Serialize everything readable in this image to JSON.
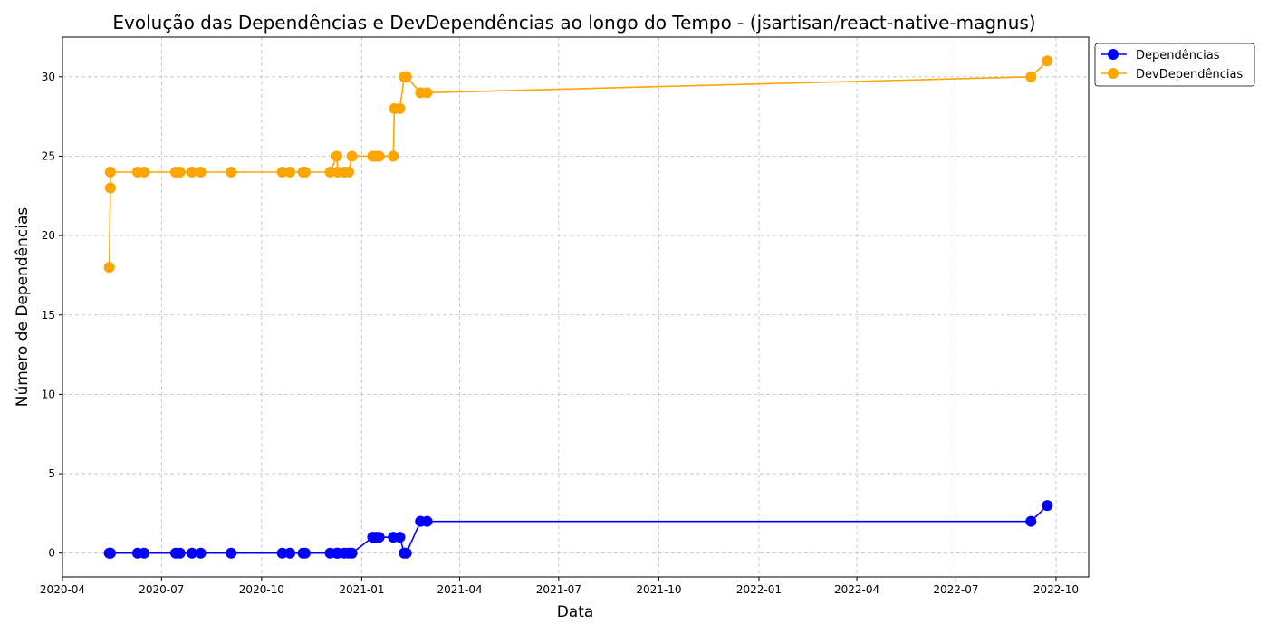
{
  "chart_data": {
    "type": "line",
    "title": "Evolução das Dependências e DevDependências ao longo do Tempo - (jsartisan/react-native-magnus)",
    "xlabel": "Data",
    "ylabel": "Número de Dependências",
    "xlim": [
      "2020-04-01",
      "2022-10-31"
    ],
    "ylim": [
      -1.5,
      32.5
    ],
    "x_ticks": [
      {
        "date": "2020-04-01",
        "label": "2020-04"
      },
      {
        "date": "2020-07-01",
        "label": "2020-07"
      },
      {
        "date": "2020-10-01",
        "label": "2020-10"
      },
      {
        "date": "2021-01-01",
        "label": "2021-01"
      },
      {
        "date": "2021-04-01",
        "label": "2021-04"
      },
      {
        "date": "2021-07-01",
        "label": "2021-07"
      },
      {
        "date": "2021-10-01",
        "label": "2021-10"
      },
      {
        "date": "2022-01-01",
        "label": "2022-01"
      },
      {
        "date": "2022-04-01",
        "label": "2022-04"
      },
      {
        "date": "2022-07-01",
        "label": "2022-07"
      },
      {
        "date": "2022-10-01",
        "label": "2022-10"
      }
    ],
    "y_ticks": [
      0,
      5,
      10,
      15,
      20,
      25,
      30
    ],
    "grid": true,
    "legend_position": "outside-top-right",
    "series": [
      {
        "name": "Dependências",
        "color": "#0000ff",
        "points": [
          {
            "x": "2020-05-14",
            "y": 0
          },
          {
            "x": "2020-05-15",
            "y": 0
          },
          {
            "x": "2020-05-15",
            "y": 0
          },
          {
            "x": "2020-06-09",
            "y": 0
          },
          {
            "x": "2020-06-15",
            "y": 0
          },
          {
            "x": "2020-07-14",
            "y": 0
          },
          {
            "x": "2020-07-18",
            "y": 0
          },
          {
            "x": "2020-07-29",
            "y": 0
          },
          {
            "x": "2020-08-06",
            "y": 0
          },
          {
            "x": "2020-09-03",
            "y": 0
          },
          {
            "x": "2020-10-20",
            "y": 0
          },
          {
            "x": "2020-10-27",
            "y": 0
          },
          {
            "x": "2020-11-08",
            "y": 0
          },
          {
            "x": "2020-11-10",
            "y": 0
          },
          {
            "x": "2020-12-03",
            "y": 0
          },
          {
            "x": "2020-12-09",
            "y": 0
          },
          {
            "x": "2020-12-10",
            "y": 0
          },
          {
            "x": "2020-12-16",
            "y": 0
          },
          {
            "x": "2020-12-20",
            "y": 0
          },
          {
            "x": "2020-12-23",
            "y": 0
          },
          {
            "x": "2021-01-11",
            "y": 1
          },
          {
            "x": "2021-01-14",
            "y": 1
          },
          {
            "x": "2021-01-17",
            "y": 1
          },
          {
            "x": "2021-01-30",
            "y": 1
          },
          {
            "x": "2021-02-05",
            "y": 1
          },
          {
            "x": "2021-02-09",
            "y": 0
          },
          {
            "x": "2021-02-11",
            "y": 0
          },
          {
            "x": "2021-02-24",
            "y": 2
          },
          {
            "x": "2021-03-02",
            "y": 2
          },
          {
            "x": "2022-09-08",
            "y": 2
          },
          {
            "x": "2022-09-23",
            "y": 3
          }
        ]
      },
      {
        "name": "DevDependências",
        "color": "#ffa500",
        "points": [
          {
            "x": "2020-05-14",
            "y": 18
          },
          {
            "x": "2020-05-15",
            "y": 23
          },
          {
            "x": "2020-05-15",
            "y": 24
          },
          {
            "x": "2020-06-09",
            "y": 24
          },
          {
            "x": "2020-06-15",
            "y": 24
          },
          {
            "x": "2020-07-14",
            "y": 24
          },
          {
            "x": "2020-07-18",
            "y": 24
          },
          {
            "x": "2020-07-29",
            "y": 24
          },
          {
            "x": "2020-08-06",
            "y": 24
          },
          {
            "x": "2020-09-03",
            "y": 24
          },
          {
            "x": "2020-10-20",
            "y": 24
          },
          {
            "x": "2020-10-27",
            "y": 24
          },
          {
            "x": "2020-11-08",
            "y": 24
          },
          {
            "x": "2020-11-10",
            "y": 24
          },
          {
            "x": "2020-12-03",
            "y": 24
          },
          {
            "x": "2020-12-09",
            "y": 25
          },
          {
            "x": "2020-12-10",
            "y": 24
          },
          {
            "x": "2020-12-16",
            "y": 24
          },
          {
            "x": "2020-12-20",
            "y": 24
          },
          {
            "x": "2020-12-23",
            "y": 25
          },
          {
            "x": "2021-01-11",
            "y": 25
          },
          {
            "x": "2021-01-14",
            "y": 25
          },
          {
            "x": "2021-01-17",
            "y": 25
          },
          {
            "x": "2021-01-30",
            "y": 25
          },
          {
            "x": "2021-01-31",
            "y": 28
          },
          {
            "x": "2021-02-05",
            "y": 28
          },
          {
            "x": "2021-02-09",
            "y": 30
          },
          {
            "x": "2021-02-11",
            "y": 30
          },
          {
            "x": "2021-02-24",
            "y": 29
          },
          {
            "x": "2021-03-02",
            "y": 29
          },
          {
            "x": "2022-09-08",
            "y": 30
          },
          {
            "x": "2022-09-23",
            "y": 31
          }
        ]
      }
    ]
  }
}
